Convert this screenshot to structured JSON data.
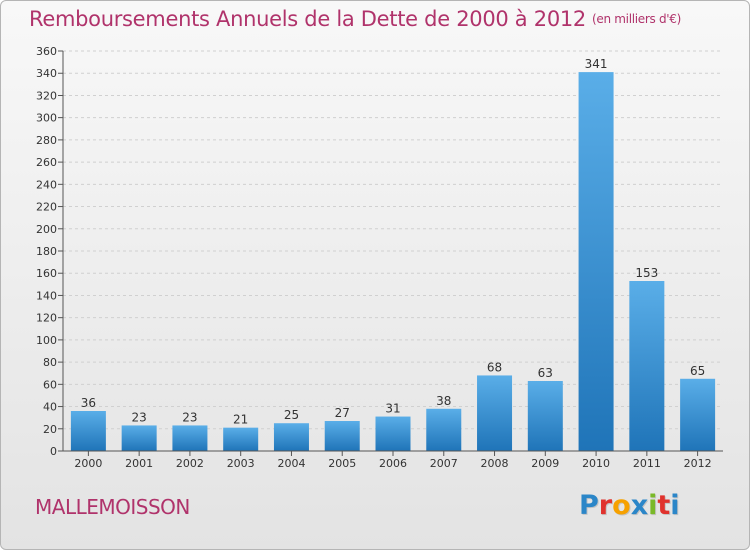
{
  "header": {
    "title": "Remboursements Annuels de la Dette de 2000 à 2012",
    "unit": "(en milliers d'€)"
  },
  "footer": {
    "commune": "MALLEMOISSON",
    "logo": "Proxiti",
    "logo_colors": [
      "#2b86c8",
      "#e0322d",
      "#f6a100",
      "#2b86c8",
      "#7ab929",
      "#e0322d",
      "#2b86c8"
    ]
  },
  "colors": {
    "bar_light": "#5aaee8",
    "bar_dark": "#1f74b8",
    "title": "#b0336b",
    "grid": "#d0d0d0",
    "axis": "#555555"
  },
  "chart_data": {
    "type": "bar",
    "title": "Remboursements Annuels de la Dette de 2000 à 2012",
    "subtitle": "(en milliers d'€)",
    "categories": [
      "2000",
      "2001",
      "2002",
      "2003",
      "2004",
      "2005",
      "2006",
      "2007",
      "2008",
      "2009",
      "2010",
      "2011",
      "2012"
    ],
    "values": [
      36,
      23,
      23,
      21,
      25,
      27,
      31,
      38,
      68,
      63,
      341,
      153,
      65
    ],
    "ylim": [
      0,
      360
    ],
    "ytick_step": 20,
    "grid": true,
    "data_labels": true
  }
}
